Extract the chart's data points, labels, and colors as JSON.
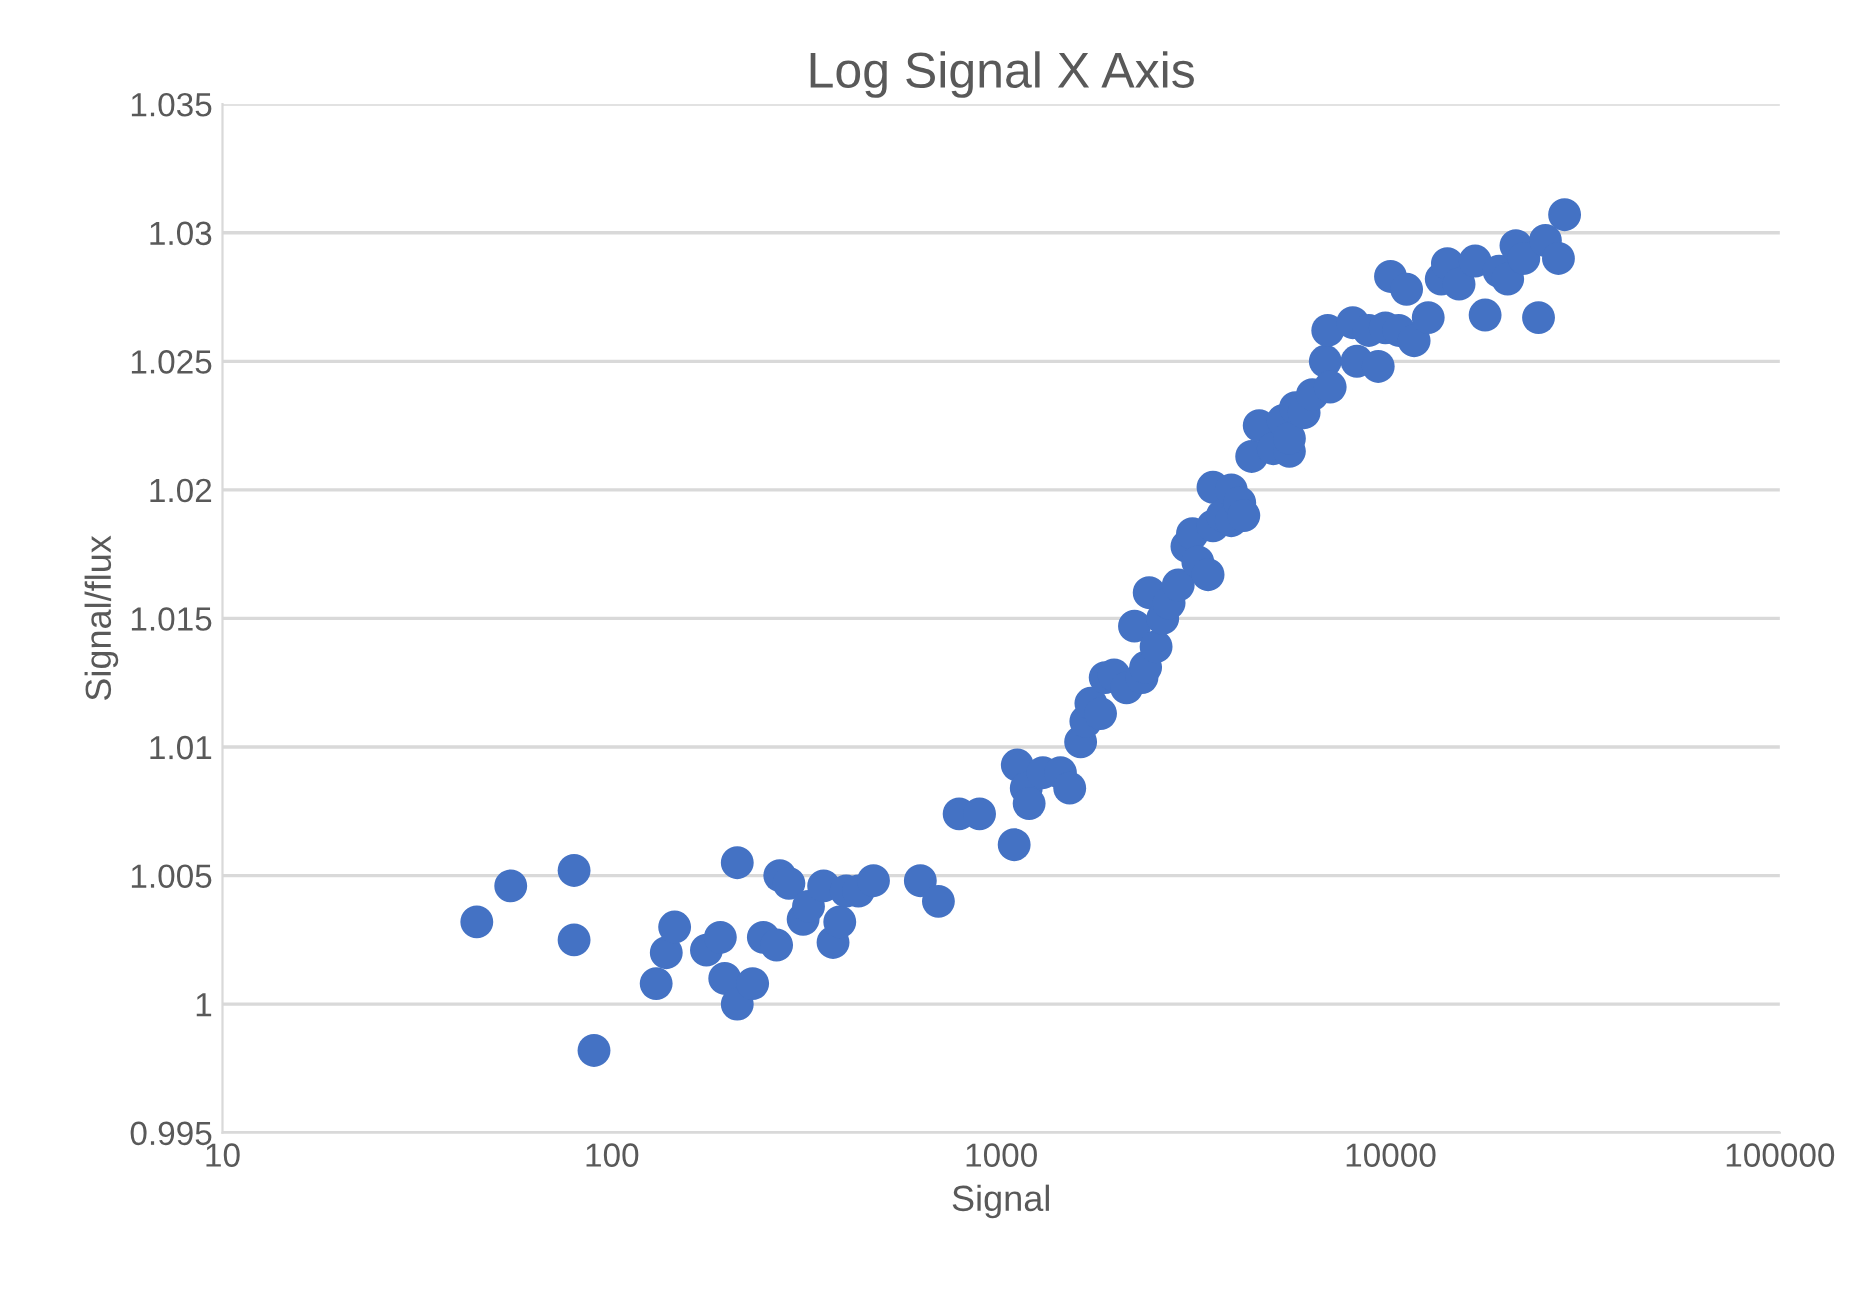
{
  "chart_data": {
    "type": "scatter",
    "title": "Log Signal X Axis",
    "xlabel": "Signal",
    "ylabel": "Signal/flux",
    "log": "x",
    "grid": "y",
    "marker": "circle",
    "xlim": [
      10,
      100000
    ],
    "xticks": [
      10,
      100,
      1000,
      10000,
      100000
    ],
    "ylim": [
      0.995,
      1.035
    ],
    "yticks": [
      {
        "value": 0.995,
        "label": "0.995"
      },
      {
        "value": 1.0,
        "label": "1"
      },
      {
        "value": 1.005,
        "label": "1.005"
      },
      {
        "value": 1.01,
        "label": "1.01"
      },
      {
        "value": 1.015,
        "label": "1.015"
      },
      {
        "value": 1.02,
        "label": "1.02"
      },
      {
        "value": 1.025,
        "label": "1.025"
      },
      {
        "value": 1.03,
        "label": "1.03"
      },
      {
        "value": 1.035,
        "label": "1.035"
      }
    ],
    "series": [
      {
        "color": "#4472c4",
        "x": [
          45,
          55,
          80,
          80,
          90,
          130,
          138,
          145,
          175,
          190,
          195,
          210,
          210,
          230,
          245,
          265,
          270,
          285,
          310,
          320,
          350,
          370,
          385,
          400,
          430,
          470,
          620,
          690,
          780,
          880,
          1080,
          1100,
          1160,
          1180,
          1280,
          1420,
          1500,
          1600,
          1650,
          1700,
          1800,
          1850,
          1950,
          2100,
          2200,
          2300,
          2350,
          2400,
          2500,
          2600,
          2700,
          2850,
          3000,
          3100,
          3200,
          3400,
          3500,
          3500,
          3700,
          3900,
          3900,
          4100,
          4200,
          4400,
          4600,
          5000,
          5300,
          5500,
          5500,
          5700,
          6000,
          6300,
          6800,
          6900,
          7000,
          8000,
          8200,
          8800,
          9300,
          9700,
          10000,
          10500,
          11000,
          11500,
          12500,
          13500,
          14000,
          15000,
          16500,
          17500,
          19000,
          20000,
          21000,
          22000,
          24000,
          25000,
          27000,
          28000
        ],
        "values": [
          1.0032,
          1.0046,
          1.0052,
          1.0025,
          0.9982,
          1.0008,
          1.002,
          1.003,
          1.0021,
          1.0026,
          1.001,
          1.0,
          1.0055,
          1.0008,
          1.0026,
          1.0023,
          1.005,
          1.0047,
          1.0033,
          1.0038,
          1.0046,
          1.0024,
          1.0032,
          1.0044,
          1.0044,
          1.0048,
          1.0048,
          1.004,
          1.0074,
          1.0074,
          1.0062,
          1.0093,
          1.0084,
          1.0078,
          1.009,
          1.009,
          1.0084,
          1.0102,
          1.011,
          1.0117,
          1.0113,
          1.0127,
          1.0128,
          1.0123,
          1.0147,
          1.0127,
          1.0131,
          1.016,
          1.0139,
          1.015,
          1.0156,
          1.0163,
          1.0178,
          1.0183,
          1.0172,
          1.0167,
          1.0186,
          1.0201,
          1.019,
          1.0188,
          1.02,
          1.0195,
          1.019,
          1.0213,
          1.0225,
          1.0216,
          1.0227,
          1.0215,
          1.022,
          1.0232,
          1.023,
          1.0237,
          1.025,
          1.0262,
          1.024,
          1.0265,
          1.025,
          1.0262,
          1.0248,
          1.0263,
          1.0283,
          1.0262,
          1.0278,
          1.0258,
          1.0267,
          1.0282,
          1.0288,
          1.028,
          1.0289,
          1.0268,
          1.0285,
          1.0282,
          1.0295,
          1.029,
          1.0267,
          1.0297,
          1.029,
          1.0307
        ]
      }
    ]
  }
}
